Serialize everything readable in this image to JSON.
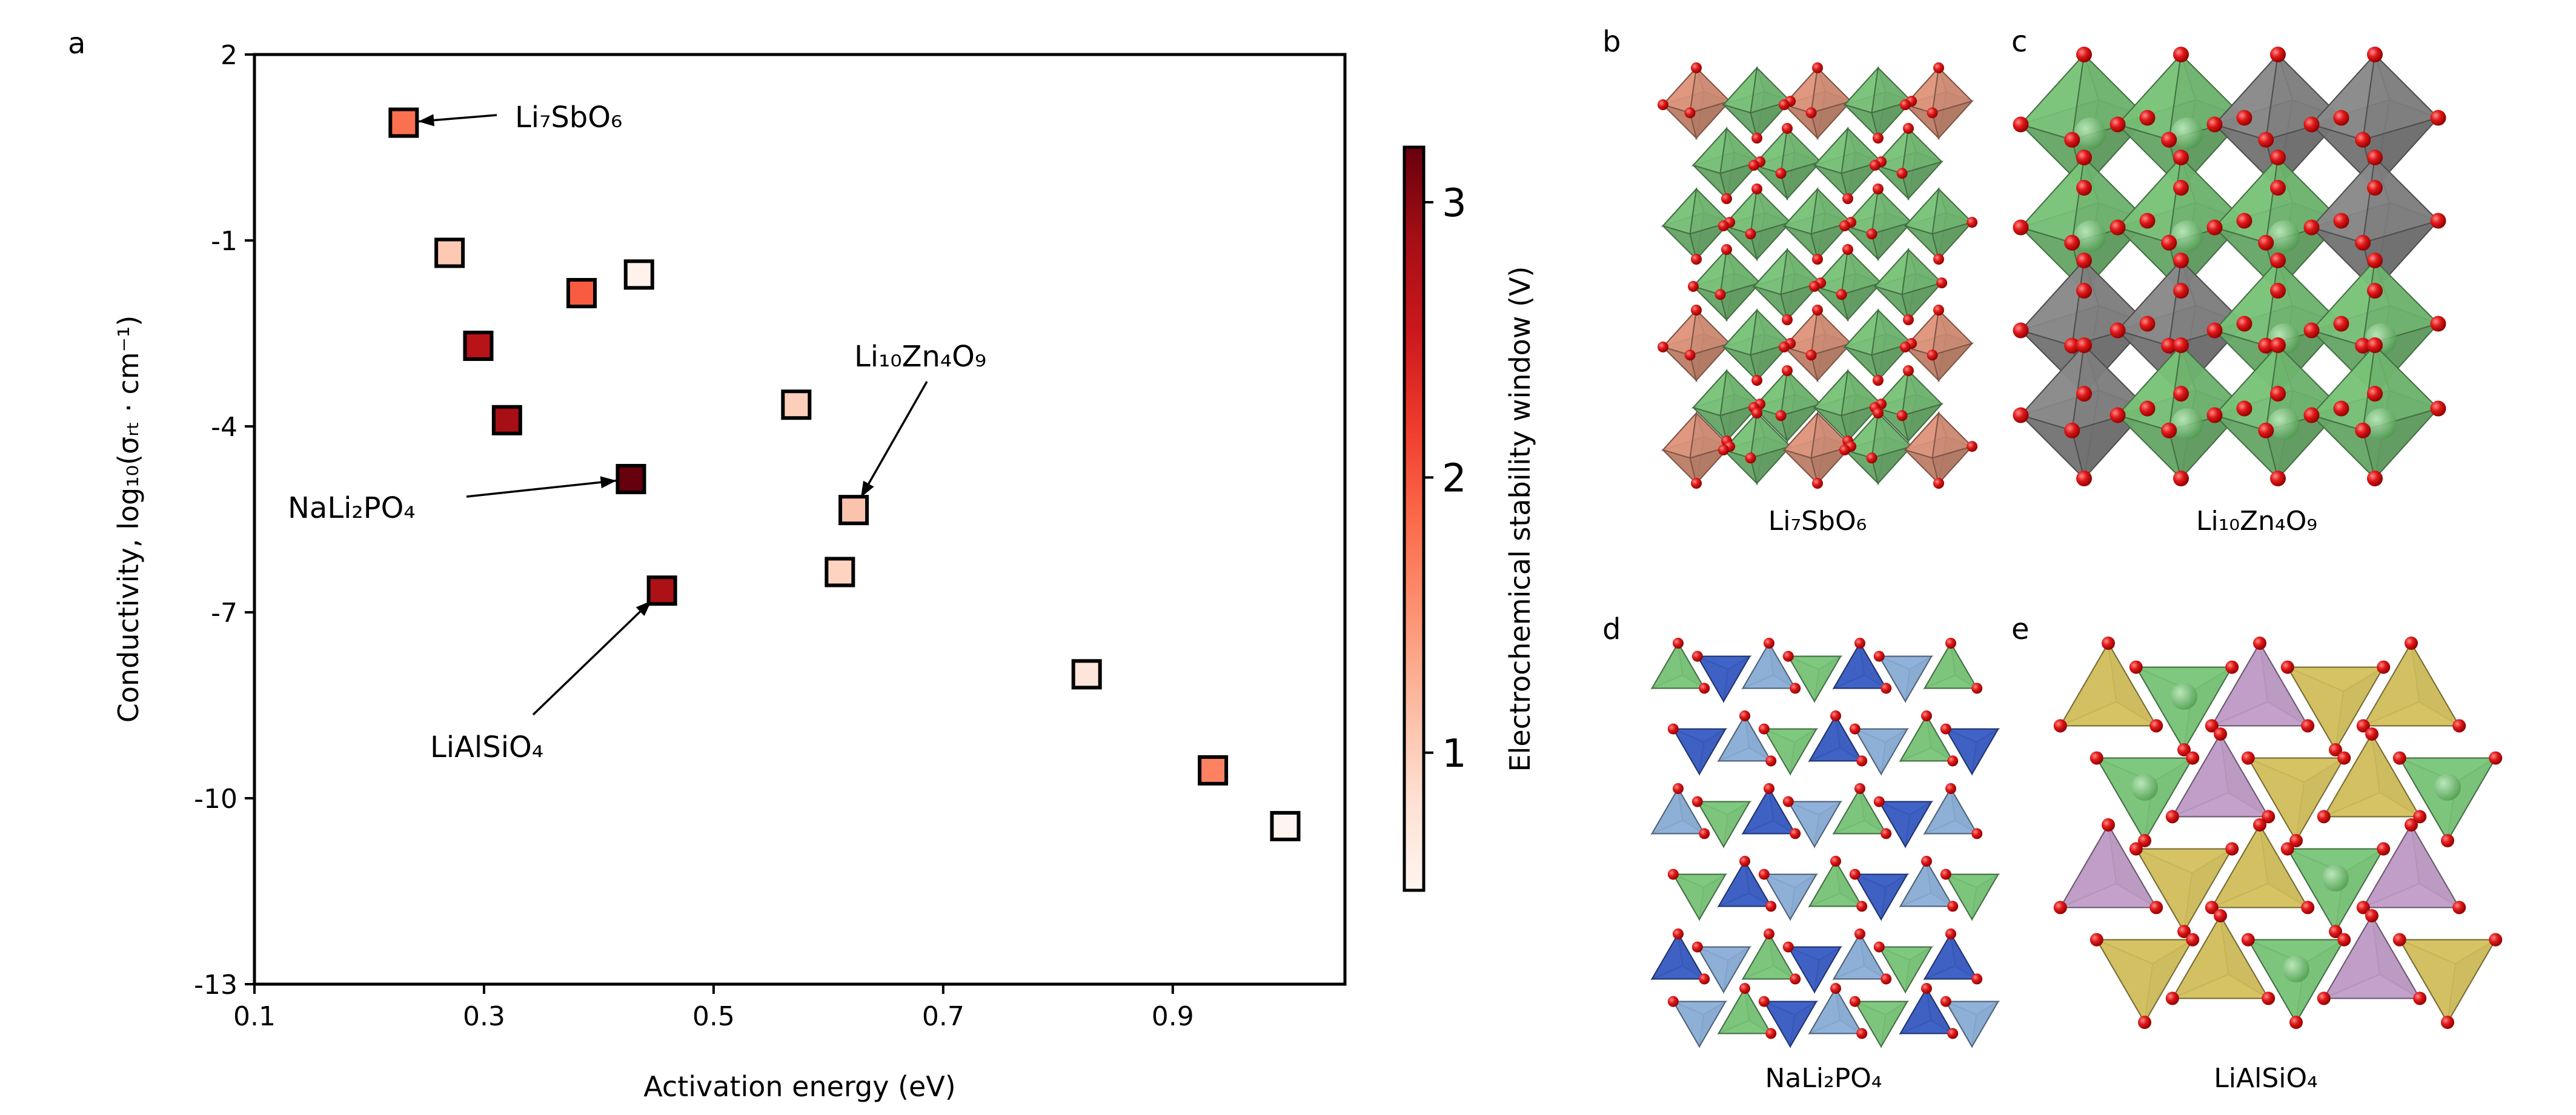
{
  "panels": {
    "main_letter": "a",
    "structures": [
      {
        "letter": "b",
        "label": "Li₇SbO₆"
      },
      {
        "letter": "c",
        "label": "Li₁₀Zn₄O₉"
      },
      {
        "letter": "d",
        "label": "NaLi₂PO₄"
      },
      {
        "letter": "e",
        "label": "LiAlSiO₄"
      }
    ]
  },
  "colors": {
    "marker_edge": "#000000",
    "colormap": [
      "#fff5f0",
      "#fee0d2",
      "#fcbba1",
      "#fc9272",
      "#fb6a4a",
      "#ef3b2c",
      "#cb181d",
      "#a50f15",
      "#67000d"
    ],
    "octa_green": "#7cc97c",
    "octa_salmon": "#e69b80",
    "octa_gray": "#8e8e8e",
    "tetra_blue": "#3a5fc8",
    "tetra_lightblue": "#8fb2dc",
    "tetra_yellow": "#d8c460",
    "tetra_purple": "#c4a0cc",
    "oxygen_red": "#dd1111"
  },
  "chart_data": {
    "type": "scatter",
    "xlabel": "Activation energy (eV)",
    "ylabel": "Conductivity, log₁₀(σᵣₜ · cm⁻¹)",
    "xlim": [
      0.1,
      1.05
    ],
    "ylim": [
      -13,
      2
    ],
    "xticks": [
      "0.1",
      "0.3",
      "0.5",
      "0.7",
      "0.9"
    ],
    "xtick_values": [
      0.1,
      0.3,
      0.5,
      0.7,
      0.9
    ],
    "yticks": [
      "2",
      "-1",
      "-4",
      "-7",
      "-10",
      "-13"
    ],
    "ytick_values": [
      2,
      -1,
      -4,
      -7,
      -10,
      -13
    ],
    "grid": false,
    "colorbar": {
      "label": "Electrochemical stability window (V)",
      "range": [
        0.5,
        3.2
      ],
      "ticks": [
        "1",
        "2",
        "3"
      ],
      "tick_values": [
        1,
        2,
        3
      ]
    },
    "points": [
      {
        "x": 0.23,
        "y": 0.9,
        "c": 1.8
      },
      {
        "x": 0.27,
        "y": -1.2,
        "c": 1.05
      },
      {
        "x": 0.435,
        "y": -1.55,
        "c": 0.55
      },
      {
        "x": 0.385,
        "y": -1.85,
        "c": 1.95
      },
      {
        "x": 0.295,
        "y": -2.7,
        "c": 2.7
      },
      {
        "x": 0.32,
        "y": -3.9,
        "c": 2.85
      },
      {
        "x": 0.428,
        "y": -4.85,
        "c": 3.2
      },
      {
        "x": 0.572,
        "y": -3.65,
        "c": 1.0
      },
      {
        "x": 0.622,
        "y": -5.35,
        "c": 1.1
      },
      {
        "x": 0.61,
        "y": -6.35,
        "c": 0.95
      },
      {
        "x": 0.455,
        "y": -6.65,
        "c": 2.8
      },
      {
        "x": 0.825,
        "y": -8.0,
        "c": 0.75
      },
      {
        "x": 0.935,
        "y": -9.55,
        "c": 1.65
      },
      {
        "x": 0.998,
        "y": -10.45,
        "c": 0.5
      }
    ],
    "annotations": [
      {
        "text": "Li₇SbO₆",
        "point": 0
      },
      {
        "text": "Li₁₀Zn₄O₉",
        "point": 8
      },
      {
        "text": "NaLi₂PO₄",
        "point": 6
      },
      {
        "text": "LiAlSiO₄",
        "point": 10
      }
    ]
  }
}
